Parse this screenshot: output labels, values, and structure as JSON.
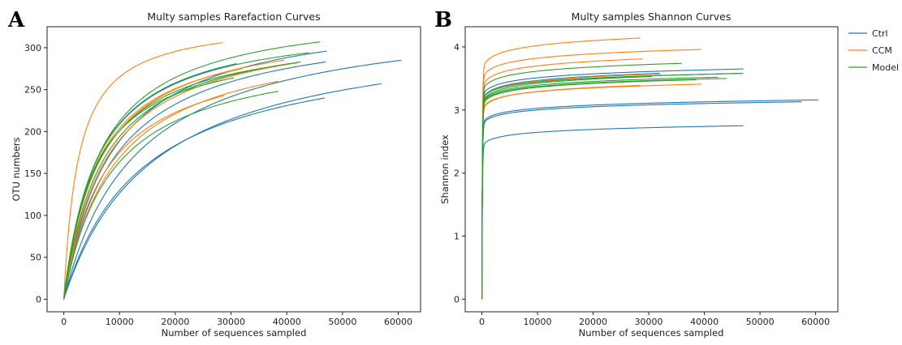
{
  "panels": {
    "a_letter": "A",
    "b_letter": "B"
  },
  "legend": {
    "entries": [
      {
        "label": "Ctrl",
        "color": "#1f77b4"
      },
      {
        "label": "CCM",
        "color": "#ff7f0e"
      },
      {
        "label": "Model",
        "color": "#2ca02c"
      }
    ],
    "placement": "right of panel B, top"
  },
  "chart_data": [
    {
      "type": "line",
      "panel": "A",
      "title": "Multy samples Rarefaction Curves",
      "xlabel": "Number of sequences sampled",
      "ylabel": "OTU numbers",
      "xlim": [
        -3000,
        64000
      ],
      "ylim": [
        -15,
        325
      ],
      "xticks": [
        0,
        10000,
        20000,
        30000,
        40000,
        50000,
        60000
      ],
      "yticks": [
        0,
        50,
        100,
        150,
        200,
        250,
        300
      ],
      "grid": false,
      "curve_model": "saturating",
      "series": [
        {
          "group": "Ctrl",
          "max_x": 60500,
          "final_y": 285,
          "shape": 13000
        },
        {
          "group": "Ctrl",
          "max_x": 57000,
          "final_y": 257,
          "shape": 16000
        },
        {
          "group": "Ctrl",
          "max_x": 46800,
          "final_y": 240,
          "shape": 14000
        },
        {
          "group": "Ctrl",
          "max_x": 47000,
          "final_y": 283,
          "shape": 9000
        },
        {
          "group": "Ctrl",
          "max_x": 47200,
          "final_y": 296,
          "shape": 8500
        },
        {
          "group": "Ctrl",
          "max_x": 31000,
          "final_y": 281,
          "shape": 6000
        },
        {
          "group": "CCM",
          "max_x": 28500,
          "final_y": 306,
          "shape": 2600
        },
        {
          "group": "CCM",
          "max_x": 39500,
          "final_y": 285,
          "shape": 6500
        },
        {
          "group": "CCM",
          "max_x": 38500,
          "final_y": 260,
          "shape": 9000
        },
        {
          "group": "CCM",
          "max_x": 28800,
          "final_y": 243,
          "shape": 7500
        },
        {
          "group": "CCM",
          "max_x": 32000,
          "final_y": 275,
          "shape": 6000
        },
        {
          "group": "CCM",
          "max_x": 42000,
          "final_y": 282,
          "shape": 7500
        },
        {
          "group": "Model",
          "max_x": 46000,
          "final_y": 307,
          "shape": 6500
        },
        {
          "group": "Model",
          "max_x": 42500,
          "final_y": 283,
          "shape": 7000
        },
        {
          "group": "Model",
          "max_x": 36000,
          "final_y": 276,
          "shape": 6000
        },
        {
          "group": "Model",
          "max_x": 38500,
          "final_y": 248,
          "shape": 8500
        },
        {
          "group": "Model",
          "max_x": 30500,
          "final_y": 264,
          "shape": 5500
        },
        {
          "group": "Model",
          "max_x": 44000,
          "final_y": 294,
          "shape": 6000
        }
      ]
    },
    {
      "type": "line",
      "panel": "B",
      "title": "Multy samples Shannon Curves",
      "xlabel": "Number of sequences sampled",
      "ylabel": "Shannon index",
      "xlim": [
        -3000,
        64000
      ],
      "ylim": [
        -0.2,
        4.32
      ],
      "xticks": [
        0,
        10000,
        20000,
        30000,
        40000,
        50000,
        60000
      ],
      "yticks": [
        0,
        1,
        2,
        3,
        4
      ],
      "grid": false,
      "curve_model": "rapid-plateau",
      "series": [
        {
          "group": "Ctrl",
          "max_x": 60500,
          "final_y": 3.16
        },
        {
          "group": "Ctrl",
          "max_x": 57500,
          "final_y": 3.13
        },
        {
          "group": "Ctrl",
          "max_x": 47000,
          "final_y": 2.75
        },
        {
          "group": "Ctrl",
          "max_x": 47000,
          "final_y": 3.65
        },
        {
          "group": "Ctrl",
          "max_x": 47000,
          "final_y": 3.58
        },
        {
          "group": "Ctrl",
          "max_x": 32000,
          "final_y": 3.58
        },
        {
          "group": "CCM",
          "max_x": 28500,
          "final_y": 4.14
        },
        {
          "group": "CCM",
          "max_x": 39500,
          "final_y": 3.96
        },
        {
          "group": "CCM",
          "max_x": 28800,
          "final_y": 3.81
        },
        {
          "group": "CCM",
          "max_x": 32000,
          "final_y": 3.57
        },
        {
          "group": "CCM",
          "max_x": 39500,
          "final_y": 3.41
        },
        {
          "group": "CCM",
          "max_x": 28500,
          "final_y": 3.39
        },
        {
          "group": "Model",
          "max_x": 36000,
          "final_y": 3.74
        },
        {
          "group": "Model",
          "max_x": 46500,
          "final_y": 3.58
        },
        {
          "group": "Model",
          "max_x": 42500,
          "final_y": 3.52
        },
        {
          "group": "Model",
          "max_x": 38500,
          "final_y": 3.48
        },
        {
          "group": "Model",
          "max_x": 30500,
          "final_y": 3.53
        },
        {
          "group": "Model",
          "max_x": 44000,
          "final_y": 3.5
        }
      ]
    }
  ]
}
